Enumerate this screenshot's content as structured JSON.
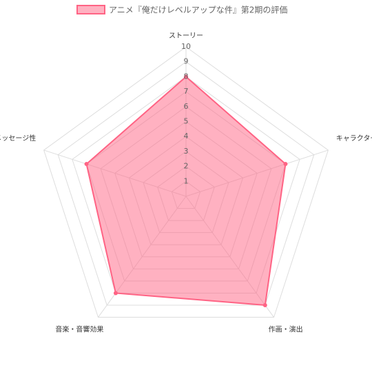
{
  "chart_data": {
    "type": "radar",
    "categories": [
      "ストーリー",
      "キャラクター",
      "作画・演出",
      "音楽・音響効果",
      "メッセージ性"
    ],
    "series": [
      {
        "name": "アニメ『俺だけレベルアップな件』第2期の評価",
        "color": "#ff6384",
        "values": [
          8,
          7,
          9,
          8,
          7
        ]
      }
    ],
    "rlim": [
      0,
      10
    ],
    "rticks": [
      1,
      2,
      3,
      4,
      5,
      6,
      7,
      8,
      9,
      10
    ],
    "grid": true,
    "legend": "top"
  }
}
